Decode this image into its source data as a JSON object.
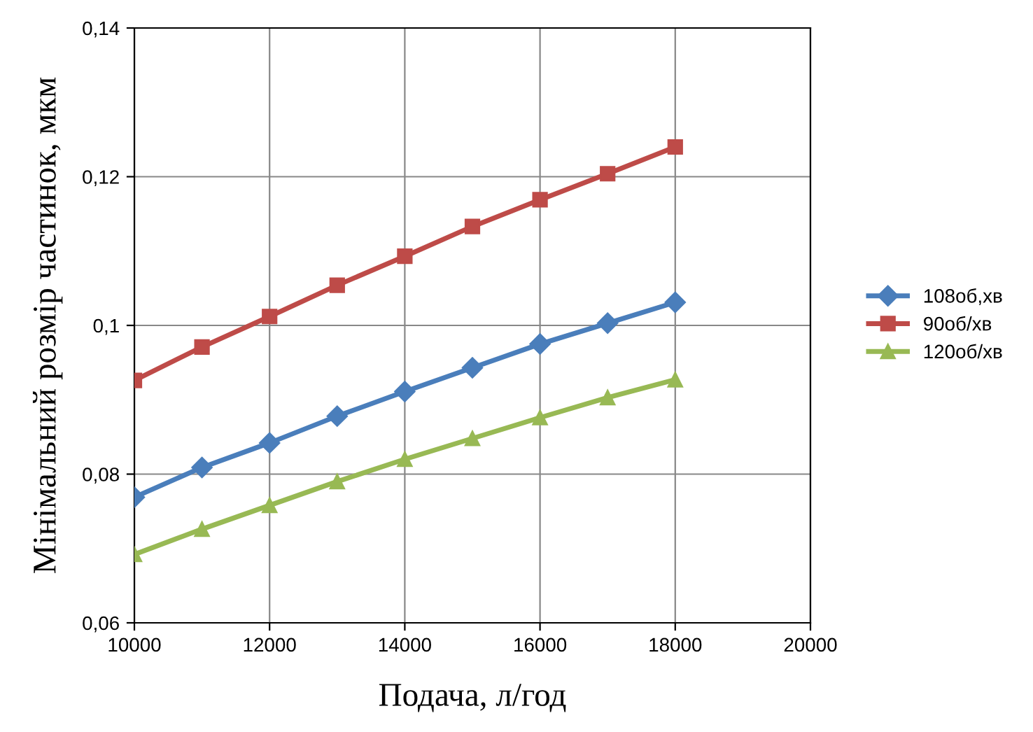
{
  "chart_data": {
    "type": "line",
    "xlabel": "Подача, л/год",
    "ylabel": "Мінімальний розмір частинок, мкм",
    "x": [
      10000,
      11000,
      12000,
      13000,
      14000,
      15000,
      16000,
      17000,
      18000
    ],
    "series": [
      {
        "name": "108об,хв",
        "color": "#4a7ebb",
        "marker": "diamond",
        "values": [
          0.0769,
          0.0809,
          0.0842,
          0.0878,
          0.0911,
          0.0943,
          0.0975,
          0.1003,
          0.1031
        ]
      },
      {
        "name": "90об/хв",
        "color": "#be4b48",
        "marker": "square",
        "values": [
          0.0926,
          0.0971,
          0.1012,
          0.1054,
          0.1093,
          0.1133,
          0.1169,
          0.1204,
          0.124
        ]
      },
      {
        "name": "120об/хв",
        "color": "#98b954",
        "marker": "triangle",
        "values": [
          0.0692,
          0.0726,
          0.0758,
          0.079,
          0.082,
          0.0848,
          0.0876,
          0.0903,
          0.0927
        ]
      }
    ],
    "xlim": [
      10000,
      20000
    ],
    "xticks": [
      10000,
      12000,
      14000,
      16000,
      18000,
      20000
    ],
    "ylim": [
      0.06,
      0.14
    ],
    "yticks": [
      {
        "value": 0.06,
        "label": "0,06"
      },
      {
        "value": 0.08,
        "label": "0,08"
      },
      {
        "value": 0.1,
        "label": "0,1"
      },
      {
        "value": 0.12,
        "label": "0,12"
      },
      {
        "value": 0.14,
        "label": "0,14"
      }
    ],
    "grid": true,
    "legend": "right",
    "line_style": "solid"
  }
}
